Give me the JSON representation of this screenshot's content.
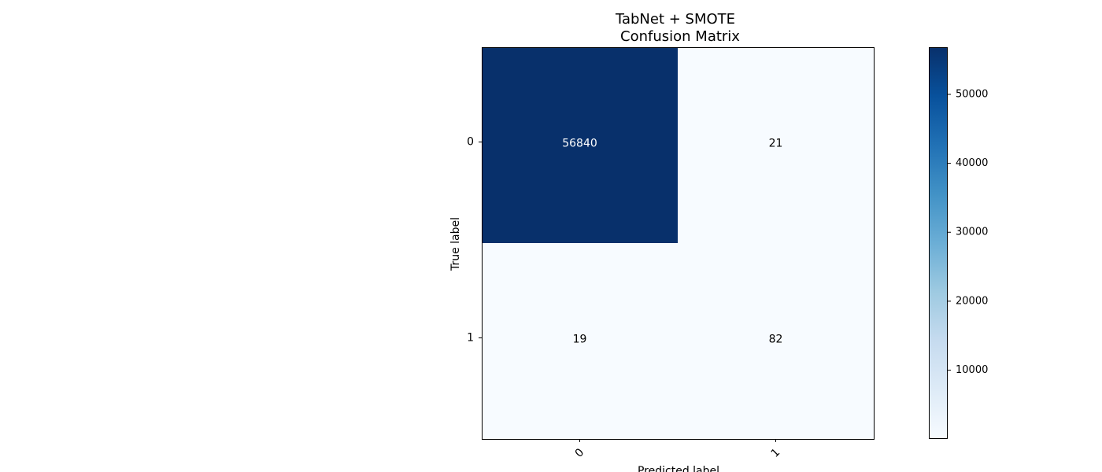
{
  "chart_data": {
    "type": "heatmap",
    "title": "TabNet + SMOTE",
    "subtitle": "Confusion Matrix",
    "xlabel": "Predicted label",
    "ylabel": "True label",
    "x_categories": [
      "0",
      "1"
    ],
    "y_categories": [
      "0",
      "1"
    ],
    "matrix": [
      [
        56840,
        21
      ],
      [
        19,
        82
      ]
    ],
    "colormap": "Blues",
    "colorbar": {
      "range": [
        19,
        56840
      ],
      "ticks": [
        10000,
        20000,
        30000,
        40000,
        50000
      ],
      "tick_labels": [
        "10000",
        "20000",
        "30000",
        "40000",
        "50000"
      ]
    },
    "text_colors": {
      "dark_cell": "#ffffff",
      "light_cell": "#000000"
    },
    "grid": false
  }
}
